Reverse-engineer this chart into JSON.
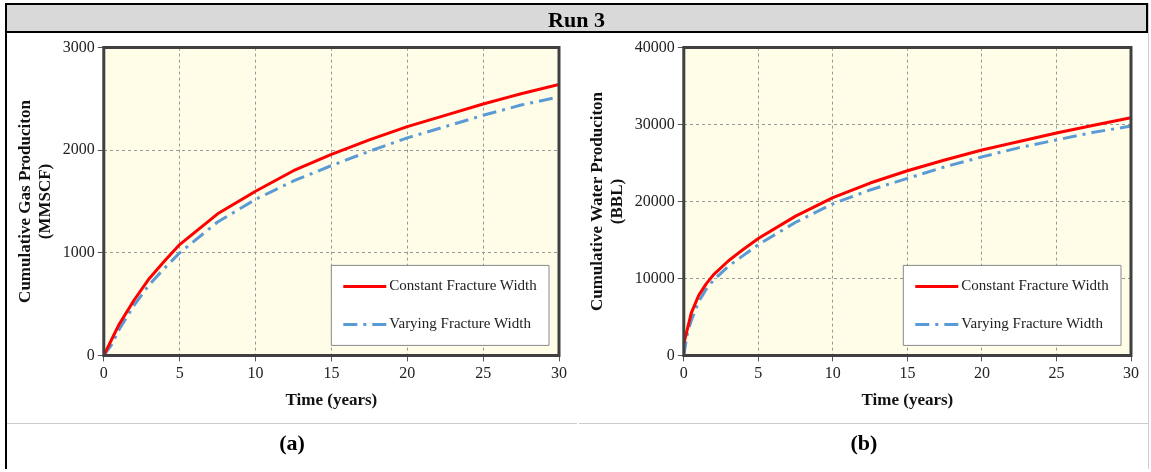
{
  "chart_data": [
    {
      "type": "line",
      "title": "Run 3",
      "xlabel": "Time (years)",
      "ylabel": "Cumulative Gas Produciton (MMSCF)",
      "annotations": [
        "(a)"
      ],
      "xlim": [
        0,
        30
      ],
      "xticks": [
        0,
        5,
        10,
        15,
        20,
        25,
        30
      ],
      "ylim": [
        0,
        3000
      ],
      "yticks": [
        0,
        1000,
        2000,
        3000
      ],
      "grid": true,
      "legend": "bottom right",
      "marker": "none",
      "series": [
        {
          "name": "Constant Fracture Width",
          "color": "#ff0000",
          "line_style": "solid",
          "x": [
            0,
            0.5,
            1,
            2,
            3,
            4,
            5,
            7.5,
            10,
            12.5,
            15,
            17.5,
            20,
            22.5,
            25,
            27.5,
            30
          ],
          "values": [
            0,
            150,
            300,
            540,
            750,
            920,
            1080,
            1380,
            1600,
            1800,
            1960,
            2100,
            2230,
            2340,
            2450,
            2550,
            2640
          ]
        },
        {
          "name": "Varying Fracture Width",
          "color": "#5b9bd5",
          "line_style": "dashed",
          "x": [
            0,
            0.5,
            1,
            2,
            3,
            4,
            5,
            7.5,
            10,
            12.5,
            15,
            17.5,
            20,
            22.5,
            25,
            27.5,
            30
          ],
          "values": [
            0,
            100,
            250,
            490,
            690,
            850,
            1000,
            1300,
            1520,
            1700,
            1850,
            1990,
            2120,
            2230,
            2340,
            2440,
            2520
          ]
        }
      ]
    },
    {
      "type": "line",
      "xlabel": "Time (years)",
      "ylabel": "Cumulative Water Produciton (BBL)",
      "annotations": [
        "(b)"
      ],
      "xlim": [
        0,
        30
      ],
      "xticks": [
        0,
        5,
        10,
        15,
        20,
        25,
        30
      ],
      "ylim": [
        0,
        40000
      ],
      "yticks": [
        0,
        10000,
        20000,
        30000,
        40000
      ],
      "grid": true,
      "legend": "bottom right",
      "marker": "none",
      "series": [
        {
          "name": "Constant Fracture Width",
          "color": "#ff0000",
          "line_style": "solid",
          "x": [
            0,
            0.25,
            0.5,
            1,
            1.5,
            2,
            3,
            4,
            5,
            7.5,
            10,
            12.5,
            15,
            17.5,
            20,
            22.5,
            25,
            27.5,
            30
          ],
          "values": [
            1500,
            3500,
            5500,
            7800,
            9300,
            10500,
            12300,
            13800,
            15200,
            18100,
            20500,
            22400,
            24000,
            25400,
            26700,
            27800,
            28900,
            29900,
            30900
          ]
        },
        {
          "name": "Varying Fracture Width",
          "color": "#5b9bd5",
          "line_style": "dashed",
          "x": [
            0,
            0.25,
            0.5,
            1,
            1.5,
            2,
            3,
            4,
            5,
            7.5,
            10,
            12.5,
            15,
            17.5,
            20,
            22.5,
            25,
            27.5,
            30
          ],
          "values": [
            0,
            3000,
            4500,
            7000,
            8600,
            9800,
            11600,
            13000,
            14400,
            17300,
            19700,
            21500,
            23000,
            24500,
            25800,
            27000,
            28000,
            29000,
            29800
          ]
        }
      ]
    }
  ]
}
